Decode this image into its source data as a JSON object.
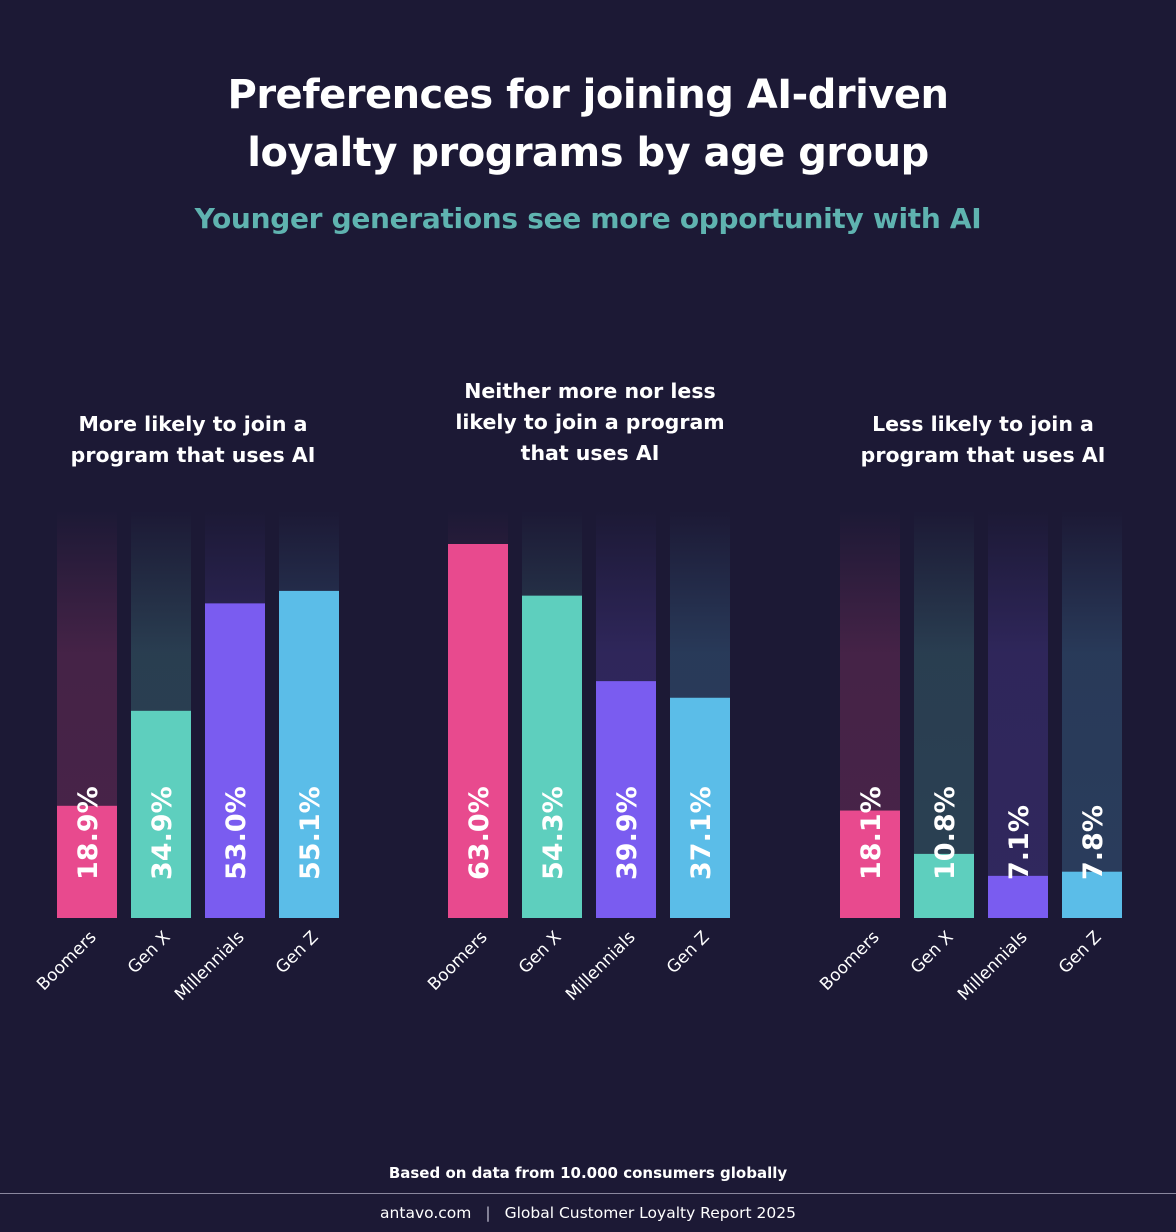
{
  "title": {
    "line1": "Preferences for joining AI-driven",
    "line2": "loyalty programs by age group"
  },
  "subtitle": "Younger generations see more opportunity with AI",
  "colors": {
    "background": "#1c1935",
    "subtitle": "#5fb3b0",
    "Boomers": "#e84a8e",
    "Gen X": "#5ecfbe",
    "Millennials": "#7a5cf0",
    "Gen Z": "#5bbde8"
  },
  "chart_data": [
    {
      "type": "bar",
      "title": "More likely to join a program that uses AI",
      "title_lines": [
        "More likely to join a",
        "program that uses AI"
      ],
      "categories": [
        "Boomers",
        "Gen X",
        "Millennials",
        "Gen Z"
      ],
      "values": [
        18.9,
        34.9,
        53.0,
        55.1
      ],
      "labels": [
        "18.9%",
        "34.9%",
        "53.0%",
        "55.1%"
      ],
      "ylim": [
        0,
        70
      ]
    },
    {
      "type": "bar",
      "title": "Neither more nor less likely to join a program that uses AI",
      "title_lines": [
        "Neither more nor less",
        "likely to join a program",
        "that uses AI"
      ],
      "categories": [
        "Boomers",
        "Gen X",
        "Millennials",
        "Gen Z"
      ],
      "values": [
        63.0,
        54.3,
        39.9,
        37.1
      ],
      "labels": [
        "63.0%",
        "54.3%",
        "39.9%",
        "37.1%"
      ],
      "ylim": [
        0,
        70
      ]
    },
    {
      "type": "bar",
      "title": "Less likely to join a program that uses AI",
      "title_lines": [
        "Less likely to join a",
        "program that uses AI"
      ],
      "categories": [
        "Boomers",
        "Gen X",
        "Millennials",
        "Gen Z"
      ],
      "values": [
        18.1,
        10.8,
        7.1,
        7.8
      ],
      "labels": [
        "18.1%",
        "10.8%",
        "7.1%",
        "7.8%"
      ],
      "ylim": [
        0,
        70
      ]
    }
  ],
  "footer_note": "Based on data from 10.000 consumers globally",
  "footer": {
    "site": "antavo.com",
    "separator": "|",
    "report": "Global Customer Loyalty Report 2025"
  }
}
